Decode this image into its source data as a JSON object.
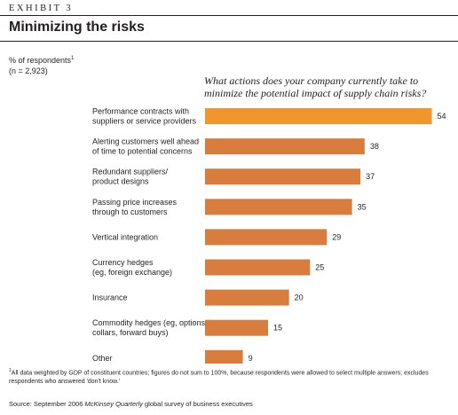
{
  "header": {
    "exhibit": "EXHIBIT 3",
    "title": "Minimizing the risks"
  },
  "unit": {
    "label": "% of respondents",
    "marker": "1",
    "sample": "(n = 2,923)"
  },
  "question": "What actions does your company currently take to minimize the potential impact of supply chain risks?",
  "chart_data": {
    "type": "bar",
    "orientation": "horizontal",
    "title": "What actions does your company currently take to minimize the potential impact of supply chain risks?",
    "ylabel": "% of respondents",
    "categories": [
      [
        "Performance contracts with",
        "suppliers or service providers"
      ],
      [
        "Alerting customers well ahead",
        "of time to potential concerns"
      ],
      [
        "Redundant suppliers/",
        "product designs"
      ],
      [
        "Passing price increases",
        "through to customers"
      ],
      [
        "Vertical integration"
      ],
      [
        "Currency hedges",
        "(eg, foreign exchange)"
      ],
      [
        "Insurance"
      ],
      [
        "Commodity hedges (eg, options,",
        "collars, forward buys)"
      ],
      [
        "Other"
      ]
    ],
    "values": [
      54,
      38,
      37,
      35,
      29,
      25,
      20,
      15,
      9
    ],
    "xlim": [
      0,
      56
    ],
    "grid": false,
    "legend": "none",
    "colors": {
      "highlight": "#f0962a",
      "bar": "#d87d3d"
    },
    "highlight_index": 0
  },
  "footnote": {
    "marker": "1",
    "text": "All data weighted by GDP of constituent countries; figures do not sum to 100%, because respondents were allowed to select multiple answers; excludes respondents who answered 'don't know.'"
  },
  "source": {
    "prefix": "Source: September 2006 ",
    "publication": "McKinsey Quarterly",
    "suffix": " global survey of business executives"
  }
}
